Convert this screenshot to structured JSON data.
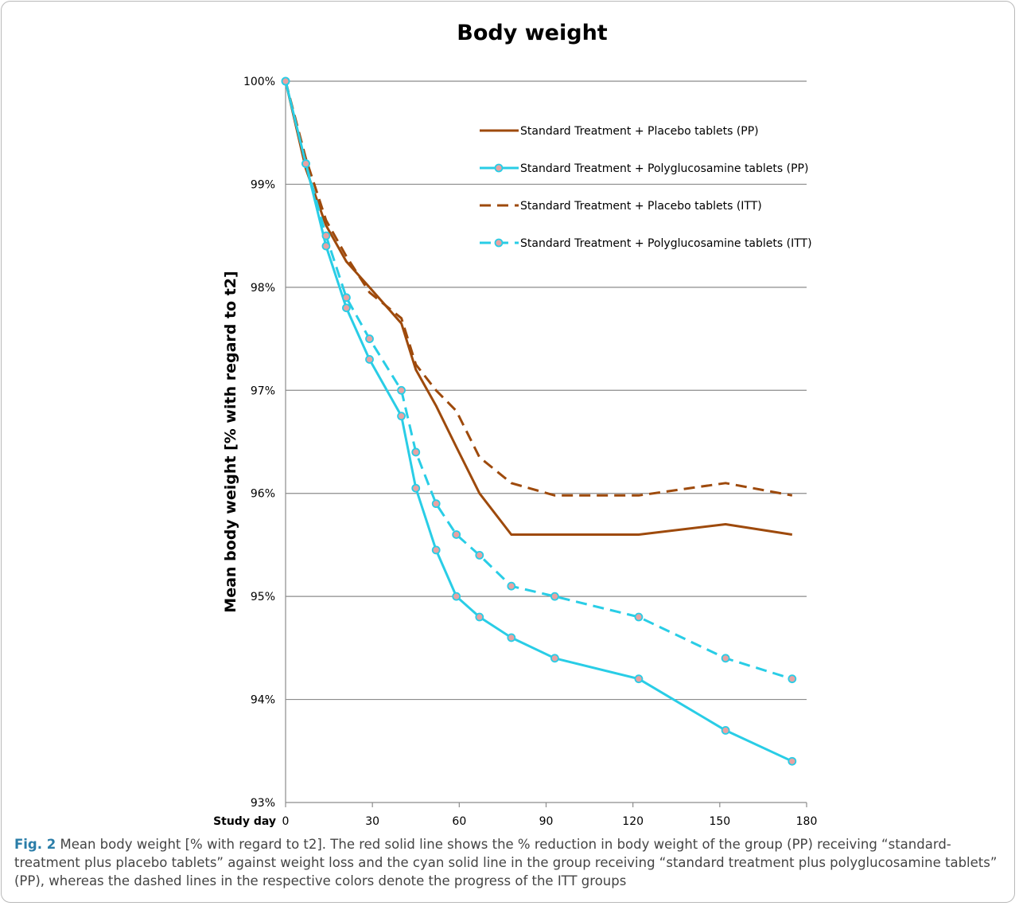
{
  "chart_data": {
    "type": "line",
    "title": "Body weight",
    "ylabel": "Mean body weight [% with regard to t2]",
    "xlabel": "Study day",
    "xlim": [
      0,
      180
    ],
    "ylim": [
      93,
      100
    ],
    "x_ticks": [
      0,
      30,
      60,
      90,
      120,
      150,
      180
    ],
    "y_ticks": [
      93,
      94,
      95,
      96,
      97,
      98,
      99,
      100
    ],
    "y_tick_labels": [
      "93%",
      "94%",
      "95%",
      "96%",
      "97%",
      "98%",
      "99%",
      "100%"
    ],
    "grid": "horizontal",
    "legend_position": "top-right",
    "series": [
      {
        "name": "Standard Treatment + Placebo tablets (PP)",
        "color": "#9e4a0c",
        "dashed": false,
        "markers": false,
        "x": [
          0,
          7,
          14,
          21,
          29,
          40,
          45,
          52,
          59,
          67,
          78,
          93,
          122,
          152,
          175
        ],
        "y": [
          100,
          99.15,
          98.6,
          98.25,
          98.0,
          97.65,
          97.2,
          96.85,
          96.45,
          96.0,
          95.6,
          95.6,
          95.6,
          95.7,
          95.6
        ]
      },
      {
        "name": "Standard Treatment + Polyglucosamine tablets (PP)",
        "color": "#29cde6",
        "dashed": false,
        "markers": true,
        "x": [
          0,
          7,
          14,
          21,
          29,
          40,
          45,
          52,
          59,
          67,
          78,
          93,
          122,
          152,
          175
        ],
        "y": [
          100,
          99.2,
          98.4,
          97.8,
          97.3,
          96.75,
          96.05,
          95.45,
          95.0,
          94.8,
          94.6,
          94.4,
          94.2,
          93.7,
          93.4
        ]
      },
      {
        "name": "Standard Treatment + Placebo tablets (ITT)",
        "color": "#9e4a0c",
        "dashed": true,
        "markers": false,
        "x": [
          0,
          7,
          14,
          21,
          29,
          40,
          45,
          52,
          59,
          67,
          78,
          93,
          122,
          152,
          175
        ],
        "y": [
          100,
          99.25,
          98.65,
          98.3,
          97.95,
          97.7,
          97.25,
          97.0,
          96.8,
          96.35,
          96.1,
          95.98,
          95.98,
          96.1,
          95.98
        ]
      },
      {
        "name": "Standard Treatment + Polyglucosamine tablets (ITT)",
        "color": "#29cde6",
        "dashed": true,
        "markers": true,
        "x": [
          0,
          7,
          14,
          21,
          29,
          40,
          45,
          52,
          59,
          67,
          78,
          93,
          122,
          152,
          175
        ],
        "y": [
          100,
          99.2,
          98.5,
          97.9,
          97.5,
          97.0,
          96.4,
          95.9,
          95.6,
          95.4,
          95.1,
          95.0,
          94.8,
          94.4,
          94.2
        ]
      }
    ]
  },
  "caption": {
    "label": "Fig. 2",
    "text": "Mean body weight [% with regard to t2]. The red solid line shows the % reduction in body weight of the group (PP) receiving “standard-treatment plus placebo tablets” against weight loss and the cyan solid line in the group receiving “standard treatment plus polyglucosamine tablets” (PP), whereas the dashed lines in the respective colors denote the progress of the ITT groups"
  },
  "colors": {
    "grid": "#8c8c8c",
    "marker_fill": "#e8a2a2",
    "caption_label": "#2a7da8"
  }
}
